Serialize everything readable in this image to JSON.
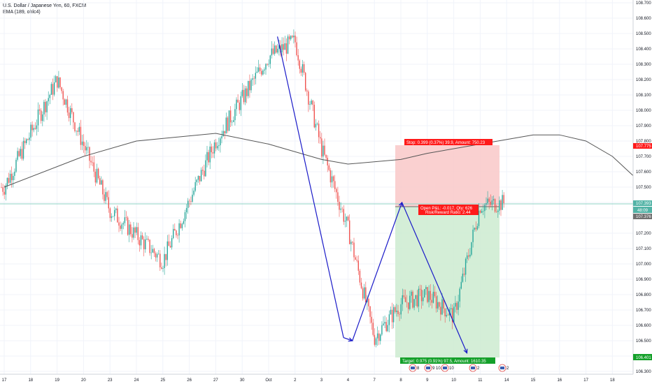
{
  "legend": {
    "symbol": "U.S. Dollar / Japanese Yen, 60, FXCM",
    "indicator": "EMA (189, ohlc4)"
  },
  "position": {
    "stop_label": "Stop: 0.399 (0.37%) 39.9, Amount: 750.23",
    "open_label": "Open P&L: -0.017, Qty: 626",
    "ratio_label": "Risk/Reward Ratio: 2.44",
    "target_label": "Target: 0.975 (0.91%) 97.5, Amount: 1610.35"
  },
  "price_tags": {
    "stop": "107.775",
    "current": "107.393",
    "timer": "48:09",
    "entry": "107.376",
    "target": "106.401"
  },
  "events": [
    "8",
    "9 10.2",
    "10",
    "2",
    "2"
  ],
  "colors": {
    "up": "#26a69a",
    "down": "#ef5350",
    "ema": "#555555",
    "drawing": "#1a1ac8",
    "stop_zone": "#f9c8c8",
    "target_zone": "#cdebd0",
    "stop_tag": "#ff1a1a",
    "target_tag": "#14a02a",
    "entry_tag": "#707070",
    "current_tag": "#52b3a6",
    "hline": "#8fd3c6"
  },
  "chart_data": {
    "type": "candlestick",
    "symbol": "U.S. Dollar / Japanese Yen",
    "interval": "60",
    "ylim": [
      106.3,
      108.7
    ],
    "y_ticks": [
      "108.700",
      "108.600",
      "108.500",
      "108.400",
      "108.300",
      "108.200",
      "108.100",
      "108.000",
      "107.900",
      "107.800",
      "107.700",
      "107.600",
      "107.500",
      "107.400",
      "107.300",
      "107.200",
      "107.100",
      "107.000",
      "106.900",
      "106.800",
      "106.700",
      "106.600",
      "106.500",
      "106.400",
      "106.300"
    ],
    "x_ticks": [
      "17",
      "18",
      "19",
      "20",
      "23",
      "24",
      "25",
      "26",
      "27",
      "30",
      "Oct",
      "2",
      "3",
      "4",
      "7",
      "8",
      "9",
      "10",
      "11",
      "14",
      "15",
      "16",
      "17",
      "18"
    ],
    "ema_points": [
      [
        0,
        107.5
      ],
      [
        3,
        107.7
      ],
      [
        5,
        107.8
      ],
      [
        8,
        107.85
      ],
      [
        10,
        107.78
      ],
      [
        12,
        107.68
      ],
      [
        13,
        107.65
      ],
      [
        15,
        107.68
      ],
      [
        16,
        107.72
      ],
      [
        18,
        107.78
      ],
      [
        20,
        107.84
      ],
      [
        21,
        107.84
      ],
      [
        22,
        107.8
      ],
      [
        23,
        107.7
      ],
      [
        24,
        107.54
      ],
      [
        25,
        107.45
      ],
      [
        26,
        107.4
      ],
      [
        27,
        107.38
      ]
    ],
    "key_points": [
      [
        0,
        107.5
      ],
      [
        2,
        108.2
      ],
      [
        4,
        107.35
      ],
      [
        6,
        107.02
      ],
      [
        8,
        107.8
      ],
      [
        10,
        108.35
      ],
      [
        11,
        108.45
      ],
      [
        12,
        107.75
      ],
      [
        13,
        107.23
      ],
      [
        14,
        106.52
      ],
      [
        15,
        106.74
      ],
      [
        16,
        106.8
      ],
      [
        17,
        106.66
      ],
      [
        18,
        107.38
      ],
      [
        19,
        107.4
      ]
    ],
    "drawings": {
      "path": [
        [
          "2019-10-01 08:00",
          108.48
        ],
        [
          "2019-10-03 20:00",
          106.52
        ],
        [
          "2019-10-04 04:00",
          106.5
        ],
        [
          "2019-10-08 01:00",
          107.4
        ],
        [
          "2019-10-10 12:00",
          106.42
        ]
      ]
    },
    "long_position": {
      "entry": 107.376,
      "stop": 107.775,
      "target": 106.401
    },
    "current_price": 107.393
  }
}
